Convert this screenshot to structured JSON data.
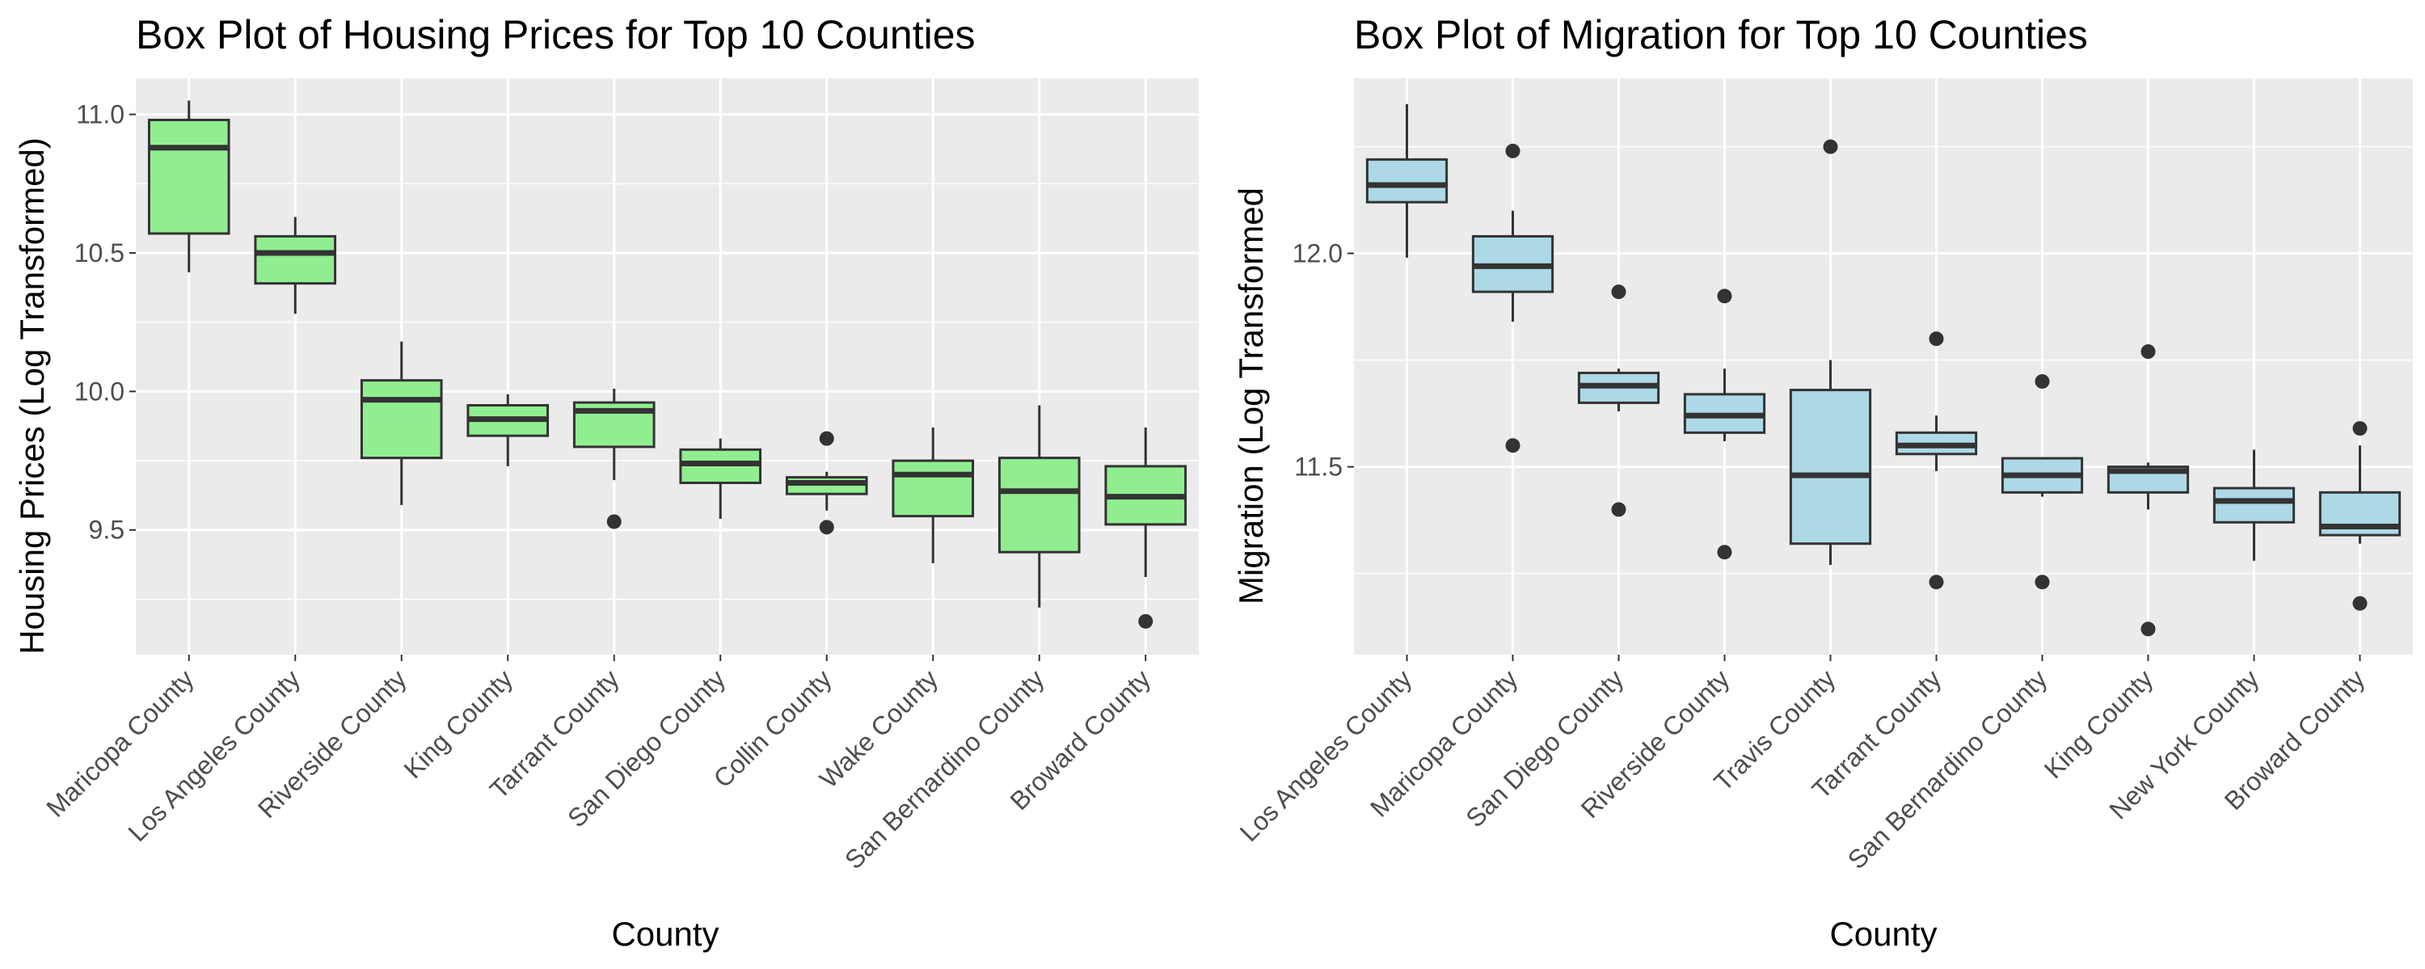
{
  "chart_data": [
    {
      "type": "box",
      "title": "Box Plot of Housing Prices for Top 10 Counties",
      "xlabel": "County",
      "ylabel": "Housing Prices (Log Transformed)",
      "ylim": [
        9.05,
        11.13
      ],
      "yticks": [
        9.5,
        10.0,
        10.5,
        11.0
      ],
      "ytick_labels": [
        "9.5",
        "10.0",
        "10.5",
        "11.0"
      ],
      "grid": true,
      "fill_color": "#90EE90",
      "categories": [
        "Maricopa County",
        "Los Angeles County",
        "Riverside County",
        "King County",
        "Tarrant County",
        "San Diego County",
        "Collin County",
        "Wake County",
        "San Bernardino County",
        "Broward County"
      ],
      "boxes": [
        {
          "whisker_low": 10.43,
          "q1": 10.57,
          "median": 10.88,
          "q3": 10.98,
          "whisker_high": 11.05,
          "outliers": []
        },
        {
          "whisker_low": 10.28,
          "q1": 10.39,
          "median": 10.5,
          "q3": 10.56,
          "whisker_high": 10.63,
          "outliers": []
        },
        {
          "whisker_low": 9.59,
          "q1": 9.76,
          "median": 9.97,
          "q3": 10.04,
          "whisker_high": 10.18,
          "outliers": []
        },
        {
          "whisker_low": 9.73,
          "q1": 9.84,
          "median": 9.9,
          "q3": 9.95,
          "whisker_high": 9.99,
          "outliers": []
        },
        {
          "whisker_low": 9.68,
          "q1": 9.8,
          "median": 9.93,
          "q3": 9.96,
          "whisker_high": 10.01,
          "outliers": [
            9.53
          ]
        },
        {
          "whisker_low": 9.54,
          "q1": 9.67,
          "median": 9.74,
          "q3": 9.79,
          "whisker_high": 9.83,
          "outliers": []
        },
        {
          "whisker_low": 9.57,
          "q1": 9.63,
          "median": 9.67,
          "q3": 9.69,
          "whisker_high": 9.71,
          "outliers": [
            9.83,
            9.51
          ]
        },
        {
          "whisker_low": 9.38,
          "q1": 9.55,
          "median": 9.7,
          "q3": 9.75,
          "whisker_high": 9.87,
          "outliers": []
        },
        {
          "whisker_low": 9.22,
          "q1": 9.42,
          "median": 9.64,
          "q3": 9.76,
          "whisker_high": 9.95,
          "outliers": []
        },
        {
          "whisker_low": 9.33,
          "q1": 9.52,
          "median": 9.62,
          "q3": 9.73,
          "whisker_high": 9.87,
          "outliers": [
            9.17
          ]
        }
      ]
    },
    {
      "type": "box",
      "title": "Box Plot of Migration for Top 10 Counties",
      "xlabel": "County",
      "ylabel": "Migration (Log Transformed",
      "ylim": [
        11.06,
        12.41
      ],
      "yticks": [
        11.5,
        12.0
      ],
      "ytick_labels": [
        "11.5",
        "12.0"
      ],
      "grid": true,
      "fill_color": "#ADD8E6",
      "categories": [
        "Los Angeles County",
        "Maricopa County",
        "San Diego County",
        "Riverside County",
        "Travis County",
        "Tarrant County",
        "San Bernardino County",
        "King County",
        "New York County",
        "Broward County"
      ],
      "boxes": [
        {
          "whisker_low": 11.99,
          "q1": 12.12,
          "median": 12.16,
          "q3": 12.22,
          "whisker_high": 12.35,
          "outliers": []
        },
        {
          "whisker_low": 11.84,
          "q1": 11.91,
          "median": 11.97,
          "q3": 12.04,
          "whisker_high": 12.1,
          "outliers": [
            12.24,
            11.55
          ]
        },
        {
          "whisker_low": 11.63,
          "q1": 11.65,
          "median": 11.69,
          "q3": 11.72,
          "whisker_high": 11.73,
          "outliers": [
            11.91,
            11.4
          ]
        },
        {
          "whisker_low": 11.56,
          "q1": 11.58,
          "median": 11.62,
          "q3": 11.67,
          "whisker_high": 11.73,
          "outliers": [
            11.9,
            11.3
          ]
        },
        {
          "whisker_low": 11.27,
          "q1": 11.32,
          "median": 11.48,
          "q3": 11.68,
          "whisker_high": 11.75,
          "outliers": [
            12.25
          ]
        },
        {
          "whisker_low": 11.49,
          "q1": 11.53,
          "median": 11.55,
          "q3": 11.58,
          "whisker_high": 11.62,
          "outliers": [
            11.8,
            11.23
          ]
        },
        {
          "whisker_low": 11.43,
          "q1": 11.44,
          "median": 11.48,
          "q3": 11.52,
          "whisker_high": 11.52,
          "outliers": [
            11.7,
            11.23
          ]
        },
        {
          "whisker_low": 11.4,
          "q1": 11.44,
          "median": 11.49,
          "q3": 11.5,
          "whisker_high": 11.51,
          "outliers": [
            11.77,
            11.12
          ]
        },
        {
          "whisker_low": 11.28,
          "q1": 11.37,
          "median": 11.42,
          "q3": 11.45,
          "whisker_high": 11.54,
          "outliers": []
        },
        {
          "whisker_low": 11.32,
          "q1": 11.34,
          "median": 11.36,
          "q3": 11.44,
          "whisker_high": 11.55,
          "outliers": [
            11.59,
            11.18
          ]
        }
      ]
    }
  ]
}
